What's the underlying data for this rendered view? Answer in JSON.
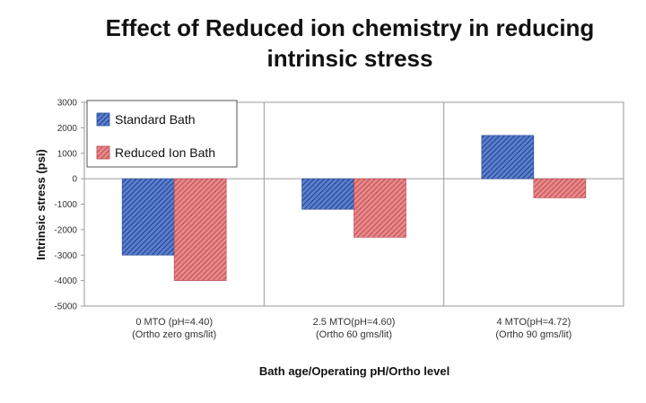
{
  "chart_data": {
    "type": "bar",
    "title_line1": "Effect of Reduced ion chemistry in reducing",
    "title_line2": "intrinsic stress",
    "xlabel": "Bath age/Operating pH/Ortho level",
    "ylabel": "Intrinsic stress (psi)",
    "ylim": [
      -5000,
      3000
    ],
    "yticks": [
      3000,
      2000,
      1000,
      0,
      -1000,
      -2000,
      -3000,
      -4000,
      -5000
    ],
    "categories": [
      {
        "line1": "0 MTO (pH=4.40)",
        "line2": "(Ortho zero gms/lit)"
      },
      {
        "line1": "2.5 MTO(pH=4.60)",
        "line2": "(Ortho 60 gms/lit)"
      },
      {
        "line1": "4 MTO(pH=4.72)",
        "line2": "(Ortho 90 gms/lit)"
      }
    ],
    "series": [
      {
        "name": "Standard Bath",
        "color": "#3a5fb0",
        "values": [
          -3000,
          -1200,
          1700
        ]
      },
      {
        "name": "Reduced Ion Bath",
        "color": "#d9575a",
        "values": [
          -4000,
          -2300,
          -750
        ]
      }
    ],
    "grid": "vertical",
    "legend": "top-left"
  }
}
